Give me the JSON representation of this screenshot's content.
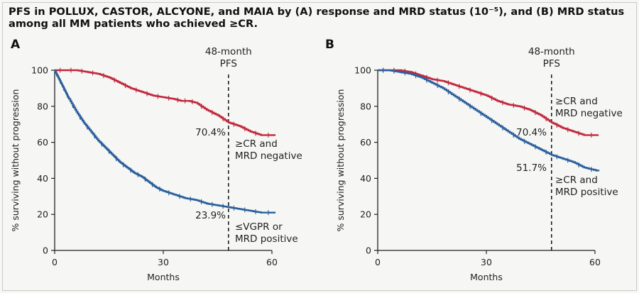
{
  "title_line1": "PFS in POLLUX, CASTOR, ALCYONE, and MAIA by (A) response and MRD status (10⁻⁵), and (B) MRD status",
  "title_line2": "among all MM patients who achieved ≥CR.",
  "colors": {
    "red": "#c0283e",
    "blue": "#2a5f9c",
    "axis": "#222222"
  },
  "chart_data": [
    {
      "type": "line",
      "panel": "A",
      "xlabel": "Months",
      "ylabel": "% surviving without progression",
      "xlim": [
        0,
        60
      ],
      "ylim": [
        0,
        100
      ],
      "xticks": [
        "0",
        "30",
        "60"
      ],
      "yticks": [
        "0",
        "20",
        "40",
        "60",
        "80",
        "100"
      ],
      "reference_line": {
        "x": 48,
        "label_line1": "48-month",
        "label_line2": "PFS"
      },
      "series": [
        {
          "color": "red",
          "label_lines": [
            "≥CR and",
            "MRD negative"
          ],
          "value_label": "70.4%",
          "x": [
            0,
            3,
            6,
            9,
            12,
            15,
            18,
            21,
            24,
            27,
            30,
            33,
            35,
            37,
            39,
            42,
            45,
            48,
            51,
            54,
            57,
            61
          ],
          "y": [
            100,
            100,
            100,
            99,
            98,
            96,
            93,
            90,
            88,
            86,
            85,
            84,
            83,
            83,
            82,
            78,
            75,
            71,
            69,
            66,
            64,
            64
          ]
        },
        {
          "color": "blue",
          "label_lines": [
            "≤VGPR or",
            "MRD positive"
          ],
          "value_label": "23.9%",
          "x": [
            0,
            1,
            2,
            3,
            4,
            6,
            8,
            10,
            12,
            14,
            16,
            18,
            20,
            22,
            24,
            26,
            28,
            30,
            33,
            36,
            39,
            42,
            45,
            48,
            51,
            54,
            57,
            61
          ],
          "y": [
            100,
            96,
            92,
            88,
            84,
            77,
            71,
            66,
            61,
            57,
            53,
            49,
            46,
            43,
            41,
            38,
            35,
            33,
            31,
            29,
            28,
            26,
            25,
            24,
            23,
            22,
            21,
            21
          ]
        }
      ]
    },
    {
      "type": "line",
      "panel": "B",
      "xlabel": "Months",
      "ylabel": "% surviving without progression",
      "xlim": [
        0,
        60
      ],
      "ylim": [
        0,
        100
      ],
      "xticks": [
        "0",
        "30",
        "60"
      ],
      "yticks": [
        "0",
        "20",
        "40",
        "60",
        "80",
        "100"
      ],
      "reference_line": {
        "x": 48,
        "label_line1": "48-month",
        "label_line2": "PFS"
      },
      "series": [
        {
          "color": "red",
          "label_lines": [
            "≥CR and",
            "MRD negative"
          ],
          "value_label": "70.4%",
          "x": [
            0,
            3,
            6,
            9,
            12,
            15,
            18,
            21,
            24,
            27,
            30,
            33,
            36,
            39,
            42,
            45,
            48,
            51,
            54,
            57,
            61
          ],
          "y": [
            100,
            100,
            100,
            99,
            97,
            95,
            94,
            92,
            90,
            88,
            86,
            83,
            81,
            80,
            78,
            75,
            71,
            68,
            66,
            64,
            64
          ]
        },
        {
          "color": "blue",
          "label_lines": [
            "≥CR and",
            "MRD positive"
          ],
          "value_label": "51.7%",
          "x": [
            0,
            3,
            6,
            9,
            12,
            15,
            18,
            21,
            24,
            27,
            30,
            33,
            36,
            39,
            42,
            45,
            48,
            51,
            54,
            57,
            61
          ],
          "y": [
            100,
            100,
            99,
            98,
            96,
            93,
            90,
            86,
            82,
            78,
            74,
            70,
            66,
            62,
            59,
            56,
            53,
            51,
            49,
            46,
            44
          ]
        }
      ]
    }
  ]
}
